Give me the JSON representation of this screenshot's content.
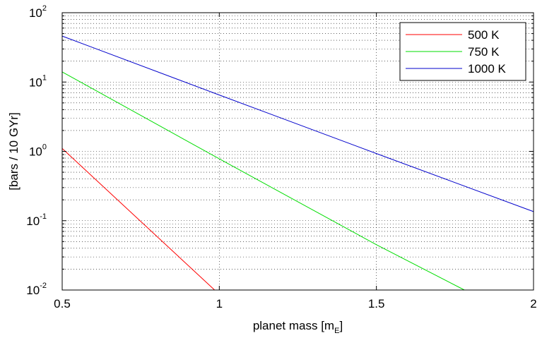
{
  "chart_data": {
    "type": "line",
    "xlabel": "planet mass [m",
    "xlabel_sub": "E",
    "xlabel_close": "]",
    "ylabel": "[bars / 10 GYr]",
    "xlim": [
      0.5,
      2
    ],
    "ylim": [
      0.01,
      100
    ],
    "yscale": "log",
    "grid": true,
    "legend_position": "top-right",
    "x_ticks": [
      {
        "value": 0.5,
        "label": "0.5"
      },
      {
        "value": 1,
        "label": "1"
      },
      {
        "value": 1.5,
        "label": "1.5"
      },
      {
        "value": 2,
        "label": "2"
      }
    ],
    "y_ticks": [
      {
        "value": 0.01,
        "base": "10",
        "exp": "-2"
      },
      {
        "value": 0.1,
        "base": "10",
        "exp": "-1"
      },
      {
        "value": 1,
        "base": "10",
        "exp": "0"
      },
      {
        "value": 10,
        "base": "10",
        "exp": "1"
      },
      {
        "value": 100,
        "base": "10",
        "exp": "2"
      }
    ],
    "series": [
      {
        "name": "500 K",
        "color": "#ff0000",
        "x": [
          0.5,
          0.985
        ],
        "y": [
          1.1,
          0.01
        ]
      },
      {
        "name": "750 K",
        "color": "#00dd00",
        "x": [
          0.5,
          1.0,
          1.5,
          1.78
        ],
        "y": [
          14,
          0.78,
          0.045,
          0.01
        ]
      },
      {
        "name": "1000 K",
        "color": "#0000cc",
        "x": [
          0.5,
          1.0,
          1.5,
          2.0
        ],
        "y": [
          46,
          6.5,
          0.93,
          0.135
        ]
      }
    ]
  }
}
